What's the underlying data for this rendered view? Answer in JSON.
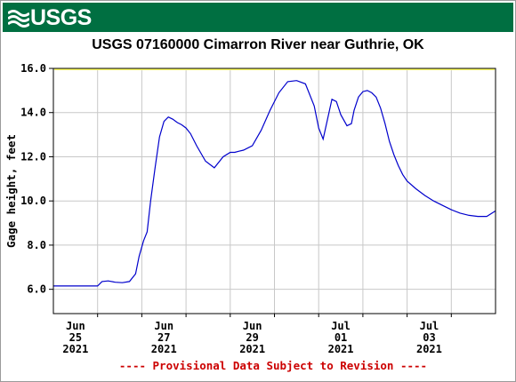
{
  "header": {
    "agency_logo_text": "USGS"
  },
  "chart_data": {
    "type": "line",
    "title": "USGS 07160000 Cimarron River near Guthrie, OK",
    "ylabel": "Gage height, feet",
    "xlabel": "",
    "ylim": [
      4.9,
      16.0
    ],
    "xlim": [
      0,
      5
    ],
    "yticks": [
      {
        "value": 6.0,
        "label": "6.0"
      },
      {
        "value": 8.0,
        "label": "8.0"
      },
      {
        "value": 10.0,
        "label": "10.0"
      },
      {
        "value": 12.0,
        "label": "12.0"
      },
      {
        "value": 14.0,
        "label": "14.0"
      },
      {
        "value": 16.0,
        "label": "16.0"
      }
    ],
    "xticks": [
      {
        "value": 0.25,
        "line1": "Jun",
        "line2": "25",
        "line3": "2021"
      },
      {
        "value": 1.25,
        "line1": "Jun",
        "line2": "27",
        "line3": "2021"
      },
      {
        "value": 2.25,
        "line1": "Jun",
        "line2": "29",
        "line3": "2021"
      },
      {
        "value": 3.25,
        "line1": "Jul",
        "line2": "01",
        "line3": "2021"
      },
      {
        "value": 4.25,
        "line1": "Jul",
        "line2": "03",
        "line3": "2021"
      }
    ],
    "grid": true,
    "series": [
      {
        "color": "#0000cc",
        "x": [
          0.0,
          0.25,
          0.5,
          0.55,
          0.62,
          0.7,
          0.78,
          0.86,
          0.93,
          0.97,
          1.02,
          1.06,
          1.1,
          1.15,
          1.2,
          1.25,
          1.3,
          1.35,
          1.4,
          1.45,
          1.5,
          1.55,
          1.62,
          1.72,
          1.82,
          1.92,
          2.0,
          2.05,
          2.1,
          2.15,
          2.25,
          2.35,
          2.45,
          2.55,
          2.65,
          2.75,
          2.85,
          2.95,
          3.0,
          3.05,
          3.15,
          3.2,
          3.25,
          3.32,
          3.37,
          3.4,
          3.45,
          3.5,
          3.55,
          3.6,
          3.65,
          3.7,
          3.75,
          3.8,
          3.85,
          3.9,
          3.95,
          4.0,
          4.1,
          4.2,
          4.3,
          4.4,
          4.5,
          4.6,
          4.7,
          4.8,
          4.9,
          5.0
        ],
        "y": [
          6.15,
          6.15,
          6.15,
          6.35,
          6.38,
          6.32,
          6.3,
          6.35,
          6.7,
          7.5,
          8.2,
          8.6,
          10.0,
          11.5,
          12.9,
          13.6,
          13.8,
          13.7,
          13.55,
          13.45,
          13.3,
          13.05,
          12.5,
          11.8,
          11.5,
          12.0,
          12.2,
          12.2,
          12.25,
          12.3,
          12.5,
          13.2,
          14.1,
          14.9,
          15.4,
          15.45,
          15.3,
          14.3,
          13.3,
          12.8,
          14.6,
          14.5,
          13.9,
          13.4,
          13.5,
          14.1,
          14.7,
          14.95,
          15.0,
          14.9,
          14.7,
          14.2,
          13.5,
          12.7,
          12.1,
          11.6,
          11.2,
          10.9,
          10.55,
          10.25,
          10.0,
          9.8,
          9.6,
          9.45,
          9.35,
          9.3,
          9.3,
          9.55
        ]
      }
    ]
  },
  "footer": {
    "provisional_note": "---- Provisional Data Subject to Revision ----"
  }
}
